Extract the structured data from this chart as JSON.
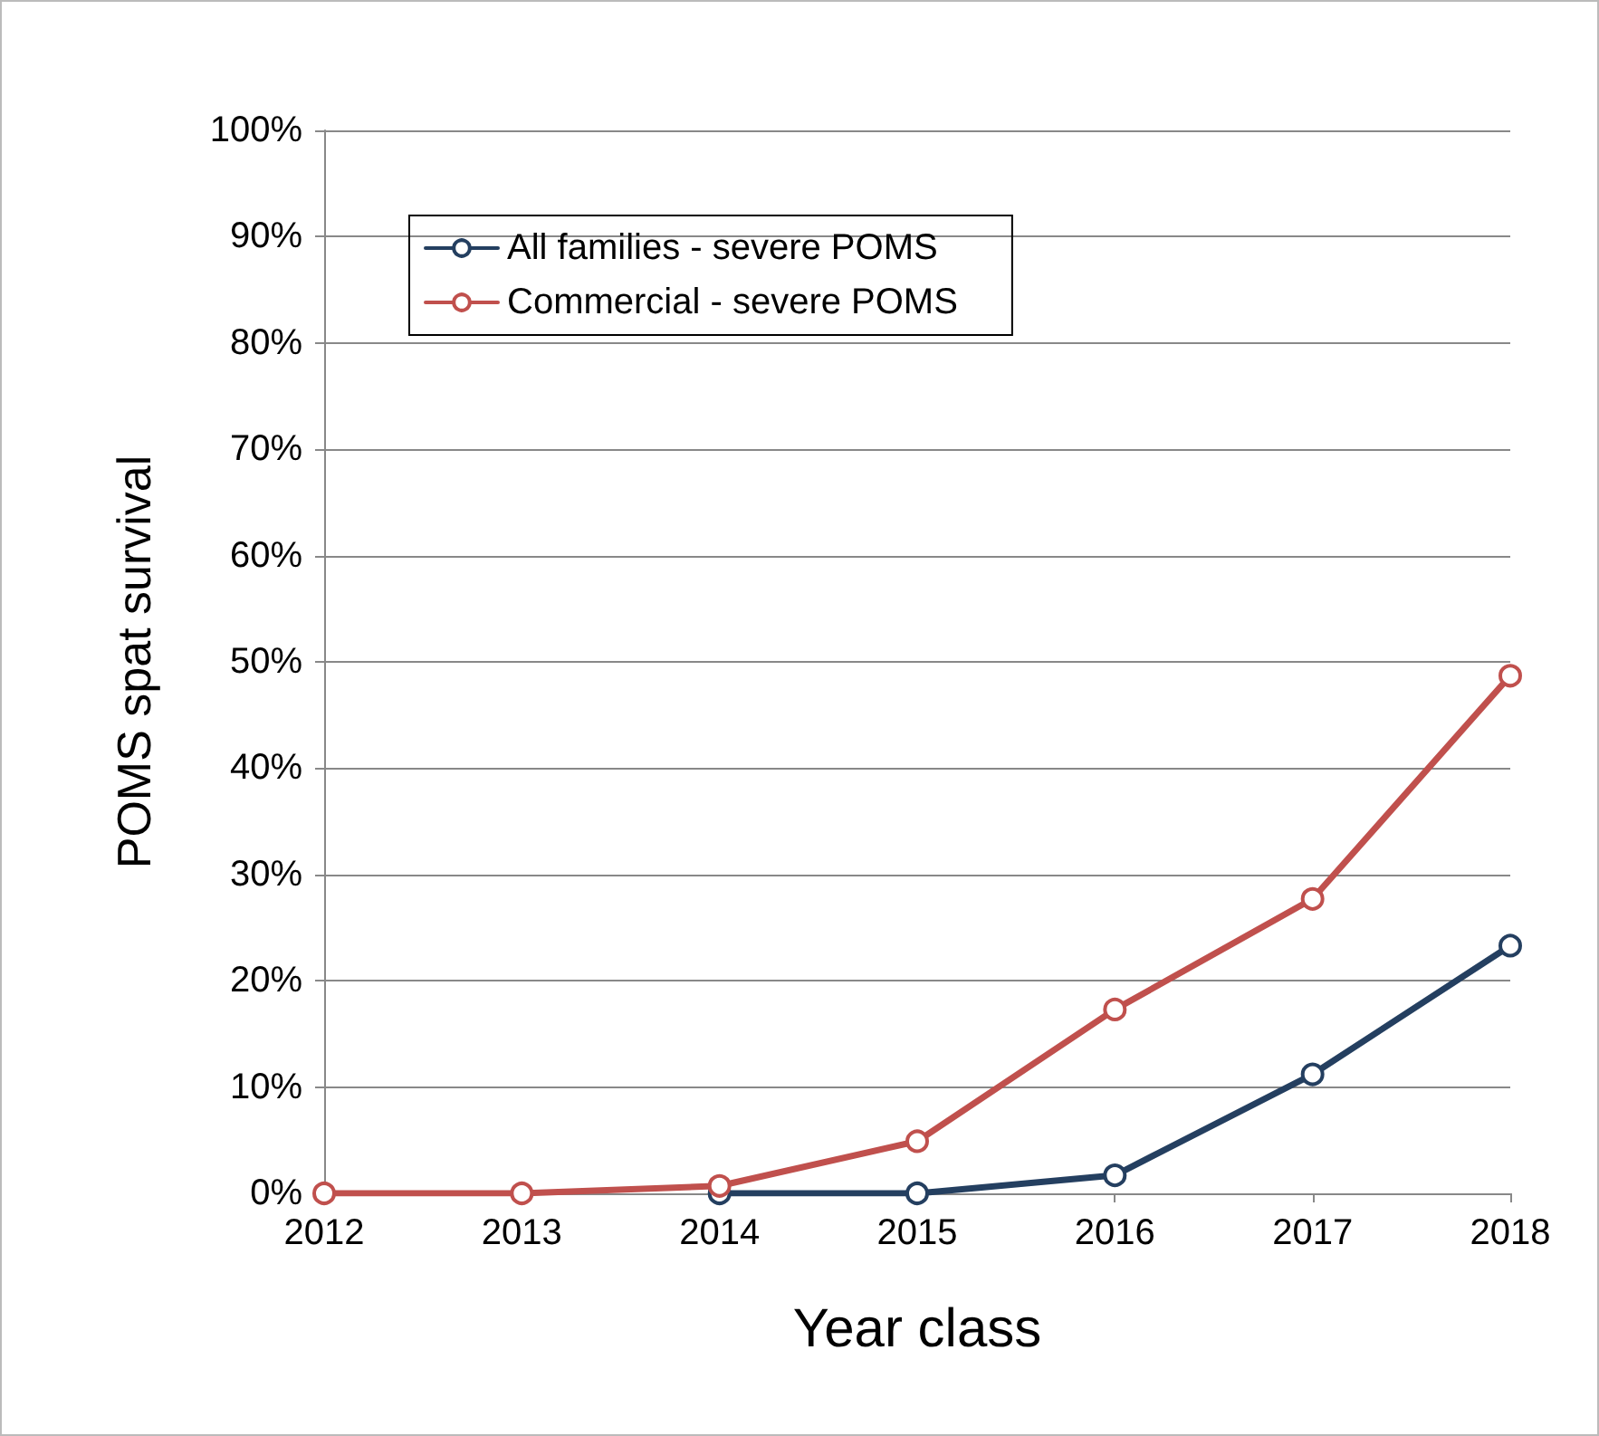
{
  "chart_data": {
    "type": "line",
    "xlabel": "Year class",
    "ylabel": "POMS spat survival",
    "categories": [
      "2012",
      "2013",
      "2014",
      "2015",
      "2016",
      "2017",
      "2018"
    ],
    "series": [
      {
        "name": "All families - severe POMS",
        "color": "#243f60",
        "values": [
          null,
          null,
          0,
          0,
          1.7,
          11.2,
          23.3
        ]
      },
      {
        "name": "Commercial - severe POMS",
        "color": "#c0504d",
        "values": [
          0,
          0,
          0.7,
          4.9,
          17.3,
          27.7,
          48.7
        ]
      }
    ],
    "ylim": [
      0,
      100
    ],
    "yticks": [
      {
        "value": 0,
        "label": "0%"
      },
      {
        "value": 10,
        "label": "10%"
      },
      {
        "value": 20,
        "label": "20%"
      },
      {
        "value": 30,
        "label": "30%"
      },
      {
        "value": 40,
        "label": "40%"
      },
      {
        "value": 50,
        "label": "50%"
      },
      {
        "value": 60,
        "label": "60%"
      },
      {
        "value": 70,
        "label": "70%"
      },
      {
        "value": 80,
        "label": "80%"
      },
      {
        "value": 90,
        "label": "90%"
      },
      {
        "value": 100,
        "label": "100%"
      }
    ],
    "grid": "y",
    "legend": "top left",
    "marker": "circle",
    "line_style": "solid"
  }
}
